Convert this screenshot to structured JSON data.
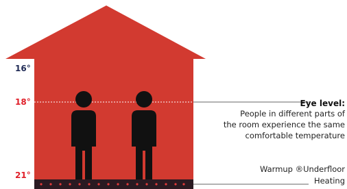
{
  "temperatures": [
    "16°",
    "18°",
    "21°"
  ],
  "eye_level": {
    "title": "Eye level:",
    "lines": [
      "People in different parts of",
      "the room experience the same",
      "comfortable temperature"
    ]
  },
  "heating": {
    "lines": [
      "Warmup ®Underfloor",
      "Heating"
    ]
  }
}
